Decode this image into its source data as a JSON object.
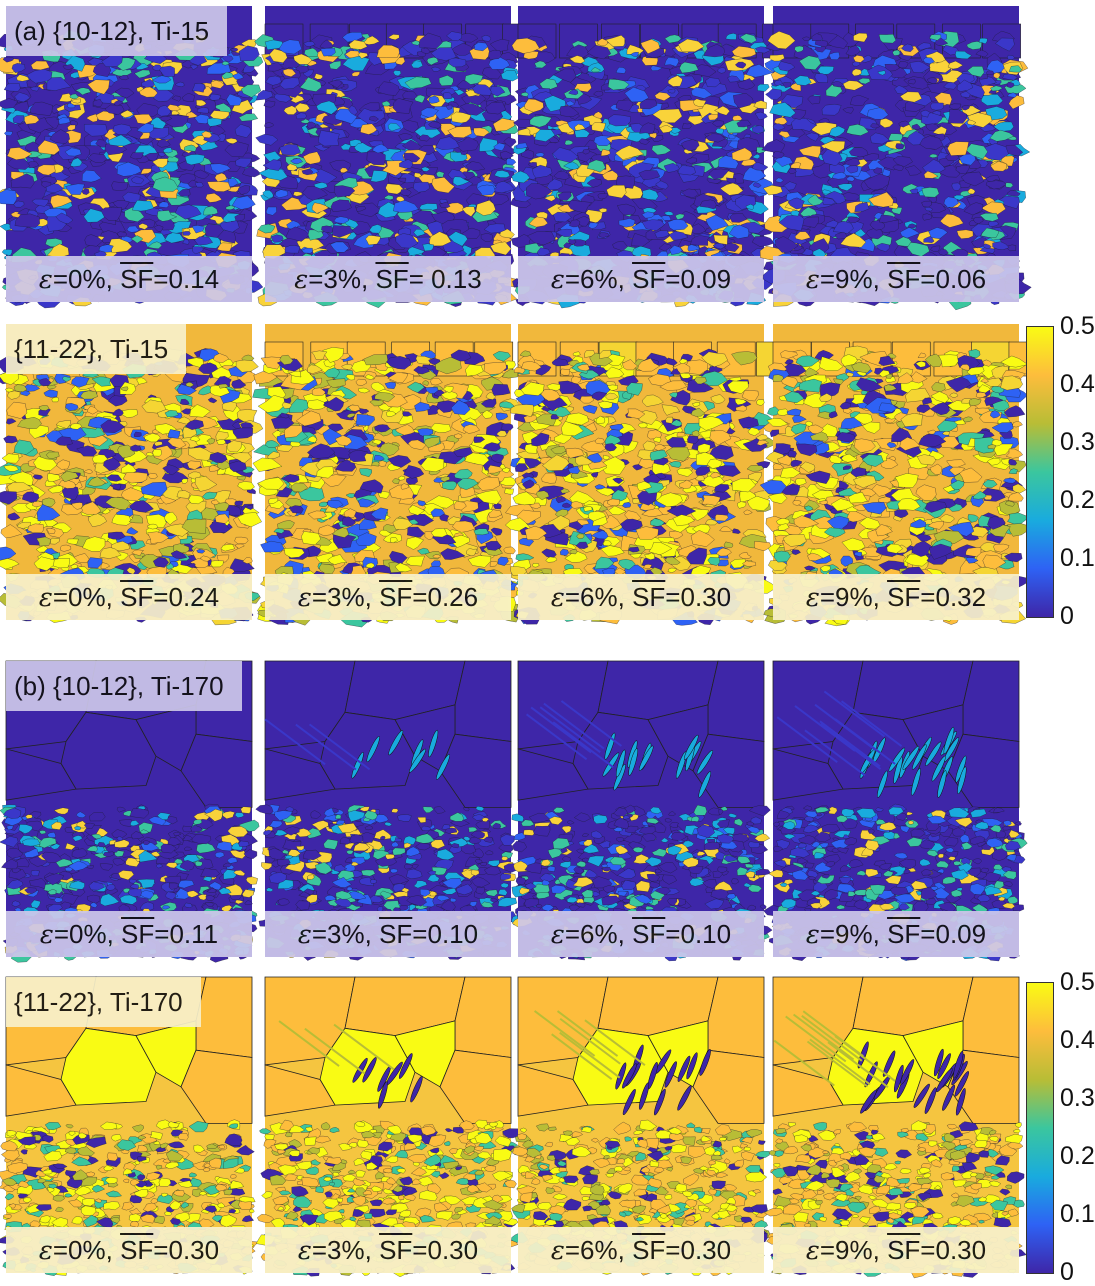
{
  "colormap_colors": [
    "#3e26a8",
    "#2e62f4",
    "#19abde",
    "#3bc69e",
    "#b8bd36",
    "#fdbd3c",
    "#f9fb14"
  ],
  "groups": [
    {
      "name": "row-a-1012",
      "title": "(a) {10-12}, Ti-15",
      "title_bg": "#cdc7ea",
      "bottom_bg": "#cdc7ea",
      "style": "fine",
      "base": "#3e26a8",
      "palette": [
        "#3e26a8",
        "#3e26a8",
        "#3e26a8",
        "#3a37c9",
        "#3a37c9",
        "#2e62f4",
        "#19abde",
        "#3bc69e",
        "#f9d33a",
        "#fdbd3c"
      ],
      "frames": [
        {
          "pre": "ε",
          "post": "=0%, ",
          "sf": "SF",
          "val": "=0.14"
        },
        {
          "pre": "ε",
          "post": "=3%, ",
          "sf": "SF",
          "val": "= 0.13"
        },
        {
          "pre": "ε",
          "post": "=6%, ",
          "sf": "SF",
          "val": "=0.09"
        },
        {
          "pre": "ε",
          "post": "=9%, ",
          "sf": "SF",
          "val": "=0.06"
        }
      ]
    },
    {
      "name": "row-a-1122",
      "title": "{11-22}, Ti-15",
      "title_bg": "#f8f1cb",
      "bottom_bg": "#f8f1cb",
      "style": "fine",
      "base": "#f1b83c",
      "palette": [
        "#fdbd3c",
        "#fdbd3c",
        "#f5d533",
        "#f9fb14",
        "#f9fb14",
        "#b8bd36",
        "#3bc69e",
        "#3e26a8",
        "#3e26a8",
        "#2e62f4"
      ],
      "frames": [
        {
          "pre": "ε",
          "post": "=0%, ",
          "sf": "SF",
          "val": "=0.24"
        },
        {
          "pre": "ε",
          "post": "=3%, ",
          "sf": "SF",
          "val": "=0.26"
        },
        {
          "pre": "ε",
          "post": "=6%, ",
          "sf": "SF",
          "val": "=0.30"
        },
        {
          "pre": "ε",
          "post": "=9%, ",
          "sf": "SF",
          "val": "=0.32"
        }
      ]
    },
    {
      "name": "row-b-1012",
      "title": "(b) {10-12}, Ti-170",
      "title_bg": "#cdc7ea",
      "bottom_bg": "#cdc7ea",
      "style": "coarse",
      "base": "#3e26a8",
      "palette": [
        "#3e26a8",
        "#3e26a8",
        "#3e26a8",
        "#3a37c9",
        "#2e62f4",
        "#19abde",
        "#3bc69e",
        "#f9d33a"
      ],
      "frames": [
        {
          "pre": "ε",
          "post": "=0%, ",
          "sf": "SF",
          "val": "=0.11"
        },
        {
          "pre": "ε",
          "post": "=3%, ",
          "sf": "SF",
          "val": "=0.10"
        },
        {
          "pre": "ε",
          "post": "=6%, ",
          "sf": "SF",
          "val": "=0.10"
        },
        {
          "pre": "ε",
          "post": "=9%, ",
          "sf": "SF",
          "val": "=0.09"
        }
      ]
    },
    {
      "name": "row-b-1122",
      "title": "{11-22}, Ti-170",
      "title_bg": "#f8f1cb",
      "bottom_bg": "#f8f1cb",
      "style": "coarse",
      "base": "#f5c540",
      "palette": [
        "#fdbd3c",
        "#fdbd3c",
        "#f9fb14",
        "#b8bd36",
        "#3bc69e",
        "#3e26a8",
        "#f9fb14"
      ],
      "frames": [
        {
          "pre": "ε",
          "post": "=0%, ",
          "sf": "SF",
          "val": "=0.30"
        },
        {
          "pre": "ε",
          "post": "=3%, ",
          "sf": "SF",
          "val": "=0.30"
        },
        {
          "pre": "ε",
          "post": "=6%, ",
          "sf": "SF",
          "val": "=0.30"
        },
        {
          "pre": "ε",
          "post": "=9%, ",
          "sf": "SF",
          "val": "=0.30"
        }
      ]
    }
  ],
  "colorbar_ticks": [
    "0.5",
    "0.4",
    "0.3",
    "0.2",
    "0.1",
    "0"
  ]
}
